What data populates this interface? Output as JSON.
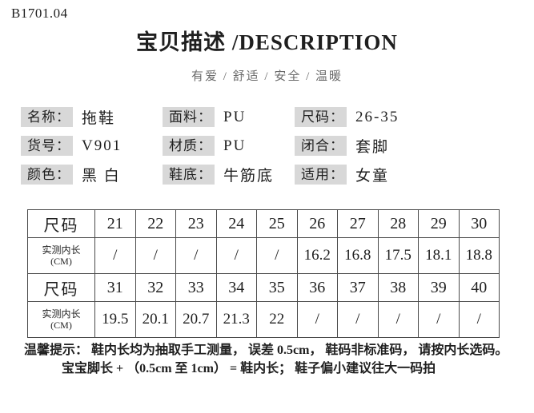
{
  "page": {
    "code": "B1701.04",
    "title": "宝贝描述 /DESCRIPTION",
    "subtitle": "有爱 / 舒适 / 安全 / 温暖"
  },
  "attributes": [
    {
      "label": "名称：",
      "value": "拖鞋"
    },
    {
      "label": "面料：",
      "value": "PU"
    },
    {
      "label": "尺码：",
      "value": "26-35"
    },
    {
      "label": "货号：",
      "value": "V901"
    },
    {
      "label": "材质：",
      "value": "PU"
    },
    {
      "label": "闭合：",
      "value": "套脚"
    },
    {
      "label": "颜色：",
      "value": "黑 白"
    },
    {
      "label": "鞋底：",
      "value": "牛筋底"
    },
    {
      "label": "适用：",
      "value": "女童"
    }
  ],
  "size_table": {
    "row_header_size": "尺码",
    "length_header": {
      "line1": "实测内长",
      "line2": "(CM)"
    },
    "rows": [
      {
        "sizes": [
          "21",
          "22",
          "23",
          "24",
          "25",
          "26",
          "27",
          "28",
          "29",
          "30"
        ],
        "lengths": [
          "/",
          "/",
          "/",
          "/",
          "/",
          "16.2",
          "16.8",
          "17.5",
          "18.1",
          "18.8"
        ]
      },
      {
        "sizes": [
          "31",
          "32",
          "33",
          "34",
          "35",
          "36",
          "37",
          "38",
          "39",
          "40"
        ],
        "lengths": [
          "19.5",
          "20.1",
          "20.7",
          "21.3",
          "22",
          "/",
          "/",
          "/",
          "/",
          "/"
        ]
      }
    ]
  },
  "notes": {
    "line1": "温馨提示： 鞋内长均为抽取手工测量， 误差 0.5cm， 鞋码非标准码， 请按内长选码。",
    "line2": "宝宝脚长 + （0.5cm 至 1cm） = 鞋内长； 鞋子偏小建议往大一码拍"
  },
  "colors": {
    "label_bg": "#d8d8d8",
    "table_border": "#4a4a4a",
    "subtitle_text": "#6b6b6b",
    "text": "#1f1f1f"
  }
}
